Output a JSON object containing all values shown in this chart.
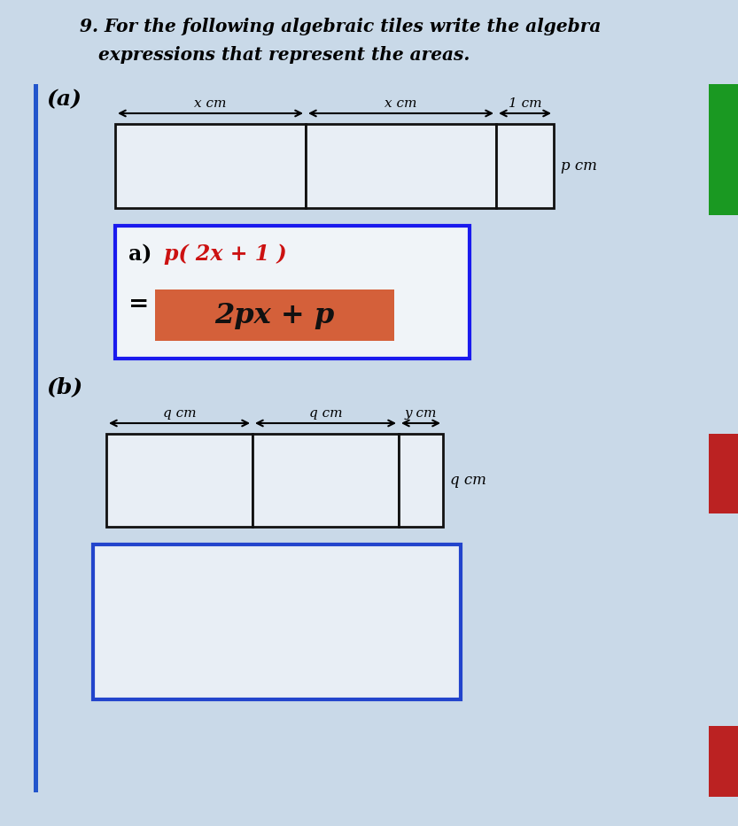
{
  "background_color": "#c9d9e8",
  "rect_fill": "#e8eef5",
  "rect_border": "#111111",
  "answer_box_border": "#1a1aee",
  "answer_box_fill": "#f0f4f8",
  "answer_highlight_fill": "#d4603a",
  "blue_rect_border": "#2244cc",
  "sidebar_green": "#1a9922",
  "sidebar_red": "#bb2222",
  "left_bar_color": "#2255cc",
  "title_line1": "9. For the following algebraic tiles write the algebra",
  "title_line2": "   expressions that represent the areas.",
  "label_a": "(a)",
  "label_b": "(b)",
  "ans_line1_prefix": "a) ",
  "ans_line1_expr": "p( 2x + 1 )",
  "ans_eq": "=",
  "ans_line2": "2px + p",
  "dim_xcm": "x cm",
  "dim_xcm2": "x cm",
  "dim_1cm": "1 cm",
  "dim_pcm": "p cm",
  "dim_qcm1": "q cm",
  "dim_qcm2": "q cm",
  "dim_ycm": "y cm",
  "dim_qcm_r": "q cm"
}
